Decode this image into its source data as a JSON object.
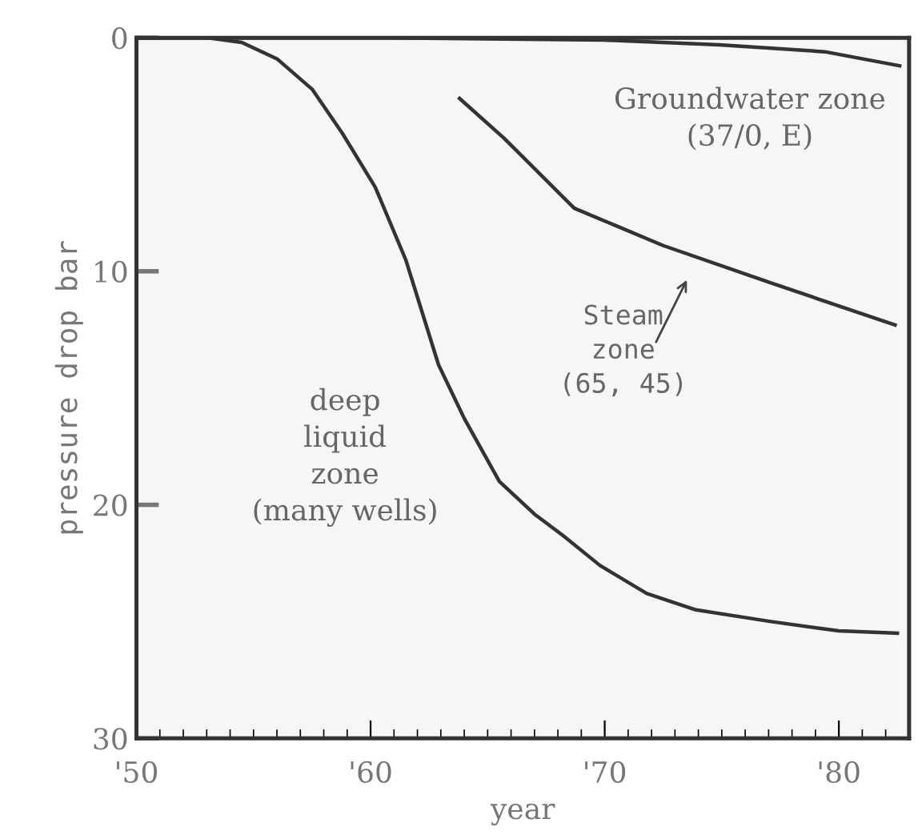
{
  "chart_data": {
    "type": "line",
    "xlabel": "year",
    "ylabel": "pressure drop bar",
    "xlim": [
      1950,
      1983
    ],
    "ylim": [
      30,
      0
    ],
    "xticks": [
      {
        "value": 1950,
        "label": "'50"
      },
      {
        "value": 1960,
        "label": "'60"
      },
      {
        "value": 1970,
        "label": "'70"
      },
      {
        "value": 1980,
        "label": "'80"
      }
    ],
    "yticks": [
      0,
      10,
      20,
      30
    ],
    "grid": false,
    "legend": false,
    "marker": "none",
    "line_style": "solid",
    "series": [
      {
        "color": "#333333",
        "x": [
          1950,
          1953,
          1954.5,
          1956,
          1957.5,
          1958.8,
          1960.2,
          1961.5,
          1962.9,
          1964,
          1965.5,
          1967,
          1968.2,
          1969.8,
          1971.8,
          1973.9,
          1977.1,
          1980,
          1982.5
        ],
        "values": [
          0,
          0,
          0.2,
          0.9,
          2.2,
          4.1,
          6.4,
          9.5,
          14.0,
          16.3,
          19.0,
          20.4,
          21.3,
          22.6,
          23.8,
          24.5,
          25.0,
          25.4,
          25.5
        ]
      },
      {
        "color": "#333333",
        "x": [
          1963.8,
          1965.7,
          1968.7,
          1972.5,
          1977.1,
          1982.4
        ],
        "values": [
          2.6,
          4.3,
          7.3,
          8.9,
          10.5,
          12.3
        ]
      },
      {
        "color": "#333333",
        "x": [
          1950,
          1960,
          1970,
          1974.9,
          1979.4,
          1982.6
        ],
        "values": [
          0,
          0,
          0.1,
          0.3,
          0.6,
          1.2
        ]
      }
    ],
    "annotations": [
      "Groundwater zone\n(37/0, E)",
      "Steam\nzone\n(65, 45)",
      "deep\nliquid\nzone\n(many wells)"
    ]
  }
}
